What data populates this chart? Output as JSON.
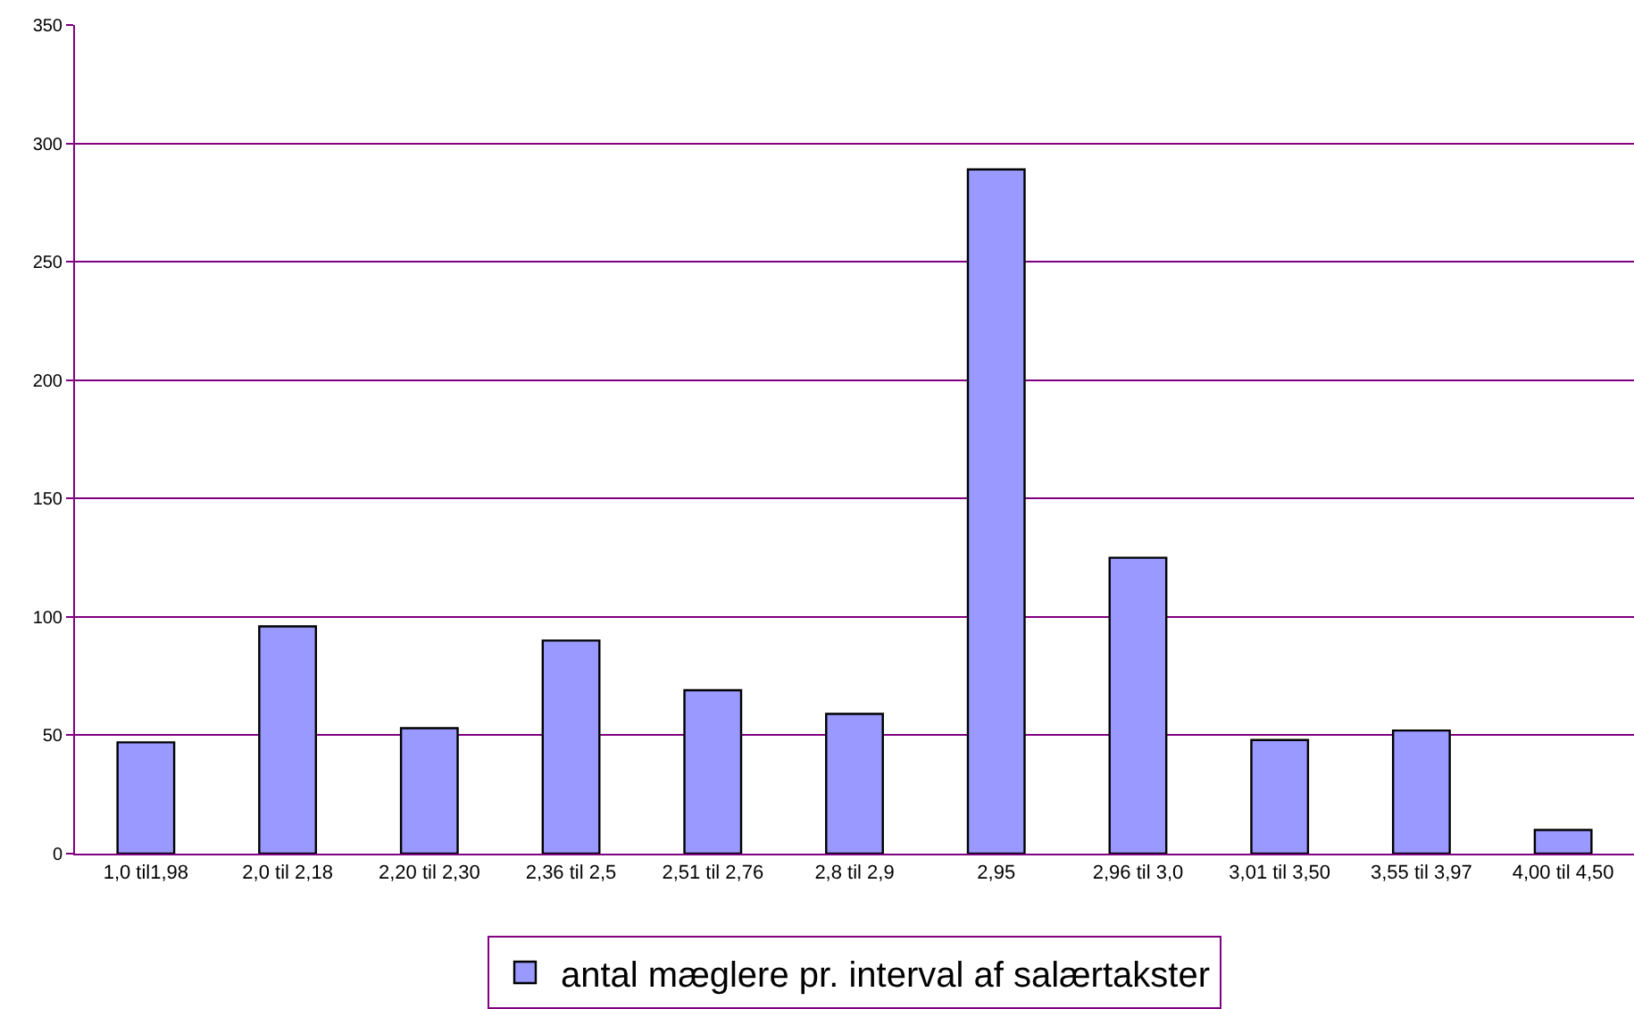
{
  "chart_data": {
    "type": "bar",
    "categories": [
      "1,0 til1,98",
      "2,0 til 2,18",
      "2,20 til 2,30",
      "2,36 til 2,5",
      "2,51 til 2,76",
      "2,8 til 2,9",
      "2,95",
      "2,96 til 3,0",
      "3,01 til 3,50",
      "3,55 til 3,97",
      "4,00 til 4,50"
    ],
    "series": [
      {
        "name": "antal mæglere pr. interval af salærtakster",
        "color": "#9999ff",
        "values": [
          47,
          96,
          53,
          90,
          69,
          59,
          289,
          125,
          48,
          52,
          10
        ]
      }
    ],
    "ylim": [
      0,
      350
    ],
    "yticks": [
      0,
      50,
      100,
      150,
      200,
      250,
      300,
      350
    ],
    "grid": "y",
    "legend": "bottom"
  }
}
